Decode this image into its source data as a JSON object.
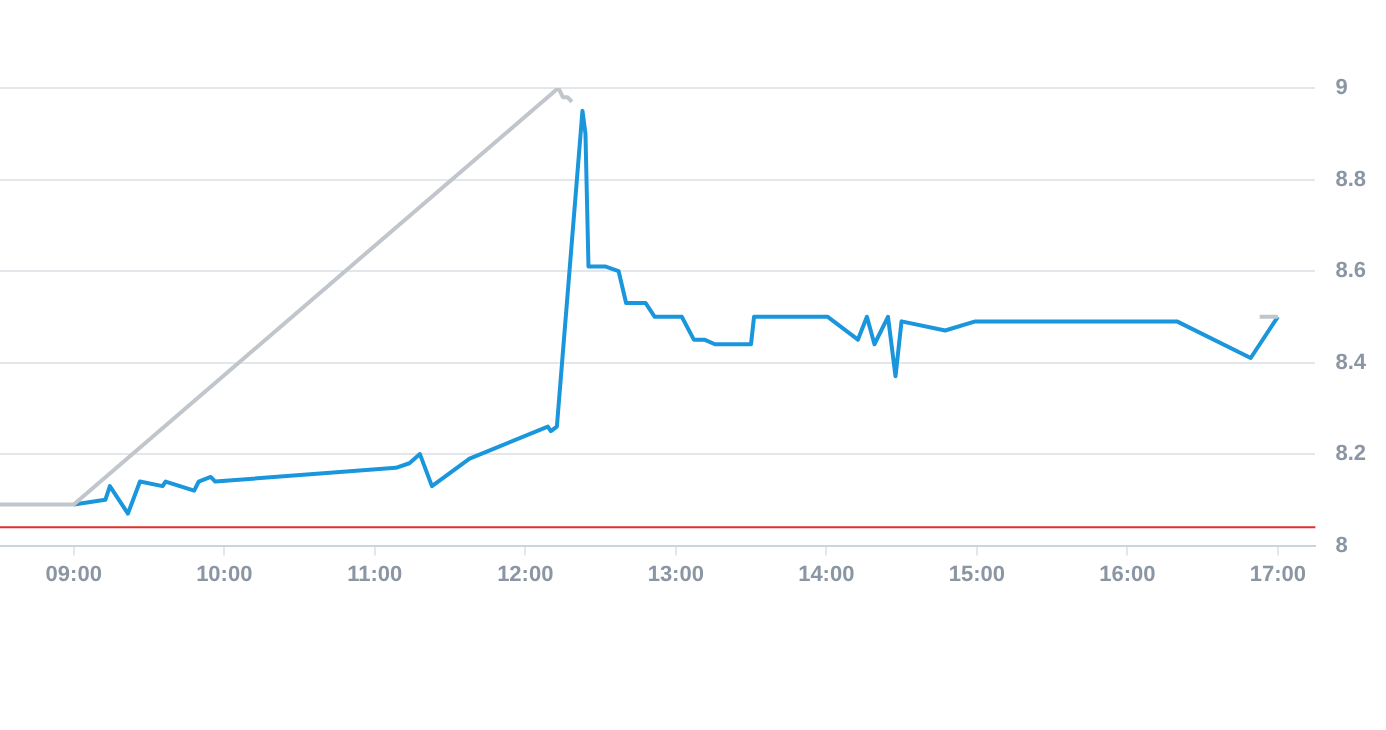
{
  "chart_data": {
    "type": "line",
    "xlim": [
      8.51,
      17.25
    ],
    "ylim": [
      8,
      9
    ],
    "xticks": [
      {
        "value": 9,
        "label": "09:00"
      },
      {
        "value": 10,
        "label": "10:00"
      },
      {
        "value": 11,
        "label": "11:00"
      },
      {
        "value": 12,
        "label": "12:00"
      },
      {
        "value": 13,
        "label": "13:00"
      },
      {
        "value": 14,
        "label": "14:00"
      },
      {
        "value": 15,
        "label": "15:00"
      },
      {
        "value": 16,
        "label": "16:00"
      },
      {
        "value": 17,
        "label": "17:00"
      }
    ],
    "yticks": [
      8,
      8.2,
      8.4,
      8.6,
      8.8,
      9
    ],
    "grid": "y",
    "legend": false,
    "marker": "none",
    "line_style": "solid",
    "ref_lines": [
      {
        "axis": "y",
        "value": 8.04,
        "color": "#e0302a"
      }
    ],
    "series": [
      {
        "color": "#c0c6cc",
        "x": [
          8.51,
          9.0,
          12.22,
          12.25,
          12.28,
          12.31,
          12.32,
          16.88,
          17.0
        ],
        "values": [
          8.09,
          8.09,
          9.0,
          8.98,
          8.98,
          8.97,
          null,
          8.5,
          8.5
        ]
      },
      {
        "color": "#1a96dc",
        "x": [
          9.0,
          9.21,
          9.24,
          9.36,
          9.44,
          9.59,
          9.61,
          9.8,
          9.83,
          9.91,
          9.94,
          11.14,
          11.23,
          11.3,
          11.38,
          11.63,
          12.15,
          12.17,
          12.21,
          12.38,
          12.4,
          12.42,
          12.53,
          12.62,
          12.67,
          12.8,
          12.86,
          13.04,
          13.12,
          13.19,
          13.26,
          13.5,
          13.52,
          14.01,
          14.21,
          14.27,
          14.32,
          14.41,
          14.46,
          14.5,
          14.79,
          14.99,
          16.33,
          16.82,
          17.0
        ],
        "values": [
          8.09,
          8.1,
          8.13,
          8.07,
          8.14,
          8.13,
          8.14,
          8.12,
          8.14,
          8.15,
          8.14,
          8.17,
          8.18,
          8.2,
          8.13,
          8.19,
          8.26,
          8.25,
          8.26,
          8.95,
          8.9,
          8.61,
          8.61,
          8.6,
          8.53,
          8.53,
          8.5,
          8.5,
          8.45,
          8.45,
          8.44,
          8.44,
          8.5,
          8.5,
          8.45,
          8.5,
          8.44,
          8.5,
          8.37,
          8.49,
          8.47,
          8.49,
          8.49,
          8.41,
          8.5
        ]
      }
    ]
  }
}
